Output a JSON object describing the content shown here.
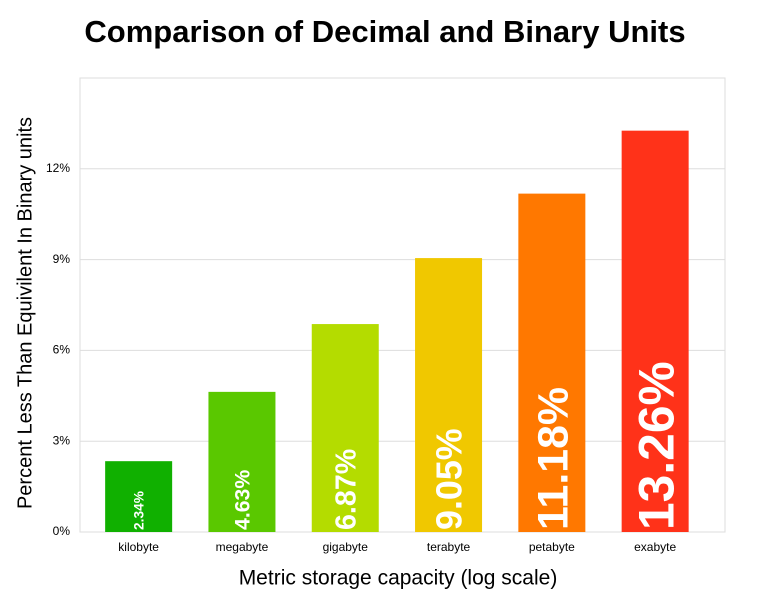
{
  "chart_data": {
    "type": "bar",
    "title": "Comparison of Decimal and Binary Units",
    "x_label": "Metric storage capacity (log scale)",
    "y_label": "Percent Less Than Equivilent In Binary units",
    "categories": [
      "kilobyte",
      "megabyte",
      "gigabyte",
      "terabyte",
      "petabyte",
      "exabyte"
    ],
    "values": [
      2.34,
      4.63,
      6.87,
      9.05,
      11.18,
      13.26
    ],
    "value_labels": [
      "2.34%",
      "4.63%",
      "6.87%",
      "9.05%",
      "11.18%",
      "13.26%"
    ],
    "colors": [
      "#10b000",
      "#5ac800",
      "#b4dc00",
      "#f0c800",
      "#ff7800",
      "#ff3219"
    ],
    "ylim": [
      0,
      15
    ],
    "yticks": [
      {
        "value": 0,
        "label": "0%"
      },
      {
        "value": 3,
        "label": "3%"
      },
      {
        "value": 6,
        "label": "6%"
      },
      {
        "value": 9,
        "label": "9%"
      },
      {
        "value": 12,
        "label": "12%"
      }
    ],
    "grid": true
  }
}
